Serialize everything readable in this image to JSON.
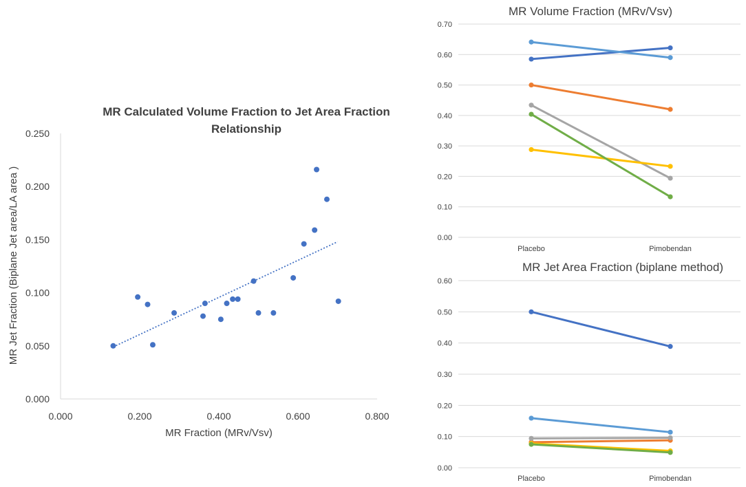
{
  "chart_data": [
    {
      "type": "scatter",
      "title": "MR Calculated Volume Fraction to Jet Area Fraction Relationship",
      "title_lines": [
        "MR Calculated Volume Fraction to Jet Area Fraction",
        "Relationship"
      ],
      "xlabel": "MR Fraction (MRv/Vsv)",
      "ylabel": "MR Jet Fraction (Biplane Jet area/LA area )",
      "xlim": [
        0,
        0.8
      ],
      "ylim": [
        0,
        0.25
      ],
      "xticks": [
        "0.000",
        "0.200",
        "0.400",
        "0.600",
        "0.800"
      ],
      "yticks": [
        "0.000",
        "0.050",
        "0.100",
        "0.150",
        "0.200",
        "0.250"
      ],
      "trendline": {
        "x0": 0.133,
        "y0": 0.049,
        "x1": 0.7,
        "y1": 0.148,
        "style": "dotted"
      },
      "marker_color": "#4472C4",
      "points": [
        {
          "x": 0.133,
          "y": 0.05
        },
        {
          "x": 0.195,
          "y": 0.096
        },
        {
          "x": 0.22,
          "y": 0.089
        },
        {
          "x": 0.233,
          "y": 0.051
        },
        {
          "x": 0.287,
          "y": 0.081
        },
        {
          "x": 0.36,
          "y": 0.078
        },
        {
          "x": 0.365,
          "y": 0.09
        },
        {
          "x": 0.405,
          "y": 0.075
        },
        {
          "x": 0.42,
          "y": 0.09
        },
        {
          "x": 0.435,
          "y": 0.094
        },
        {
          "x": 0.448,
          "y": 0.094
        },
        {
          "x": 0.488,
          "y": 0.111
        },
        {
          "x": 0.5,
          "y": 0.081
        },
        {
          "x": 0.538,
          "y": 0.081
        },
        {
          "x": 0.588,
          "y": 0.114
        },
        {
          "x": 0.615,
          "y": 0.146
        },
        {
          "x": 0.642,
          "y": 0.159
        },
        {
          "x": 0.647,
          "y": 0.216
        },
        {
          "x": 0.673,
          "y": 0.188
        },
        {
          "x": 0.702,
          "y": 0.092
        }
      ]
    },
    {
      "type": "line",
      "title": "MR Volume Fraction (MRv/Vsv)",
      "categories": [
        "Placebo",
        "Pimobendan"
      ],
      "ylim": [
        0,
        0.7
      ],
      "yticks": [
        "0.00",
        "0.10",
        "0.20",
        "0.30",
        "0.40",
        "0.50",
        "0.60",
        "0.70"
      ],
      "grid": true,
      "series": [
        {
          "name": "dark blue",
          "color": "#4472C4",
          "values": [
            0.585,
            0.622
          ]
        },
        {
          "name": "light blue",
          "color": "#5B9BD5",
          "values": [
            0.641,
            0.59
          ]
        },
        {
          "name": "orange",
          "color": "#ED7D31",
          "values": [
            0.5,
            0.42
          ]
        },
        {
          "name": "gray",
          "color": "#A5A5A5",
          "values": [
            0.434,
            0.194
          ]
        },
        {
          "name": "yellow",
          "color": "#FFC000",
          "values": [
            0.288,
            0.233
          ]
        },
        {
          "name": "green",
          "color": "#70AD47",
          "values": [
            0.404,
            0.133
          ]
        }
      ]
    },
    {
      "type": "line",
      "title": "MR Jet Area Fraction (biplane method)",
      "categories": [
        "Placebo",
        "Pimobendan"
      ],
      "ylim": [
        0,
        0.6
      ],
      "yticks": [
        "0.00",
        "0.10",
        "0.20",
        "0.30",
        "0.40",
        "0.50",
        "0.60"
      ],
      "grid": true,
      "series": [
        {
          "name": "dark blue",
          "color": "#4472C4",
          "values": [
            0.5,
            0.389
          ]
        },
        {
          "name": "light blue",
          "color": "#5B9BD5",
          "values": [
            0.159,
            0.114
          ]
        },
        {
          "name": "orange",
          "color": "#ED7D31",
          "values": [
            0.082,
            0.088
          ]
        },
        {
          "name": "gray",
          "color": "#A5A5A5",
          "values": [
            0.094,
            0.096
          ]
        },
        {
          "name": "yellow",
          "color": "#FFC000",
          "values": [
            0.078,
            0.054
          ]
        },
        {
          "name": "green",
          "color": "#70AD47",
          "values": [
            0.075,
            0.049
          ]
        }
      ]
    }
  ]
}
